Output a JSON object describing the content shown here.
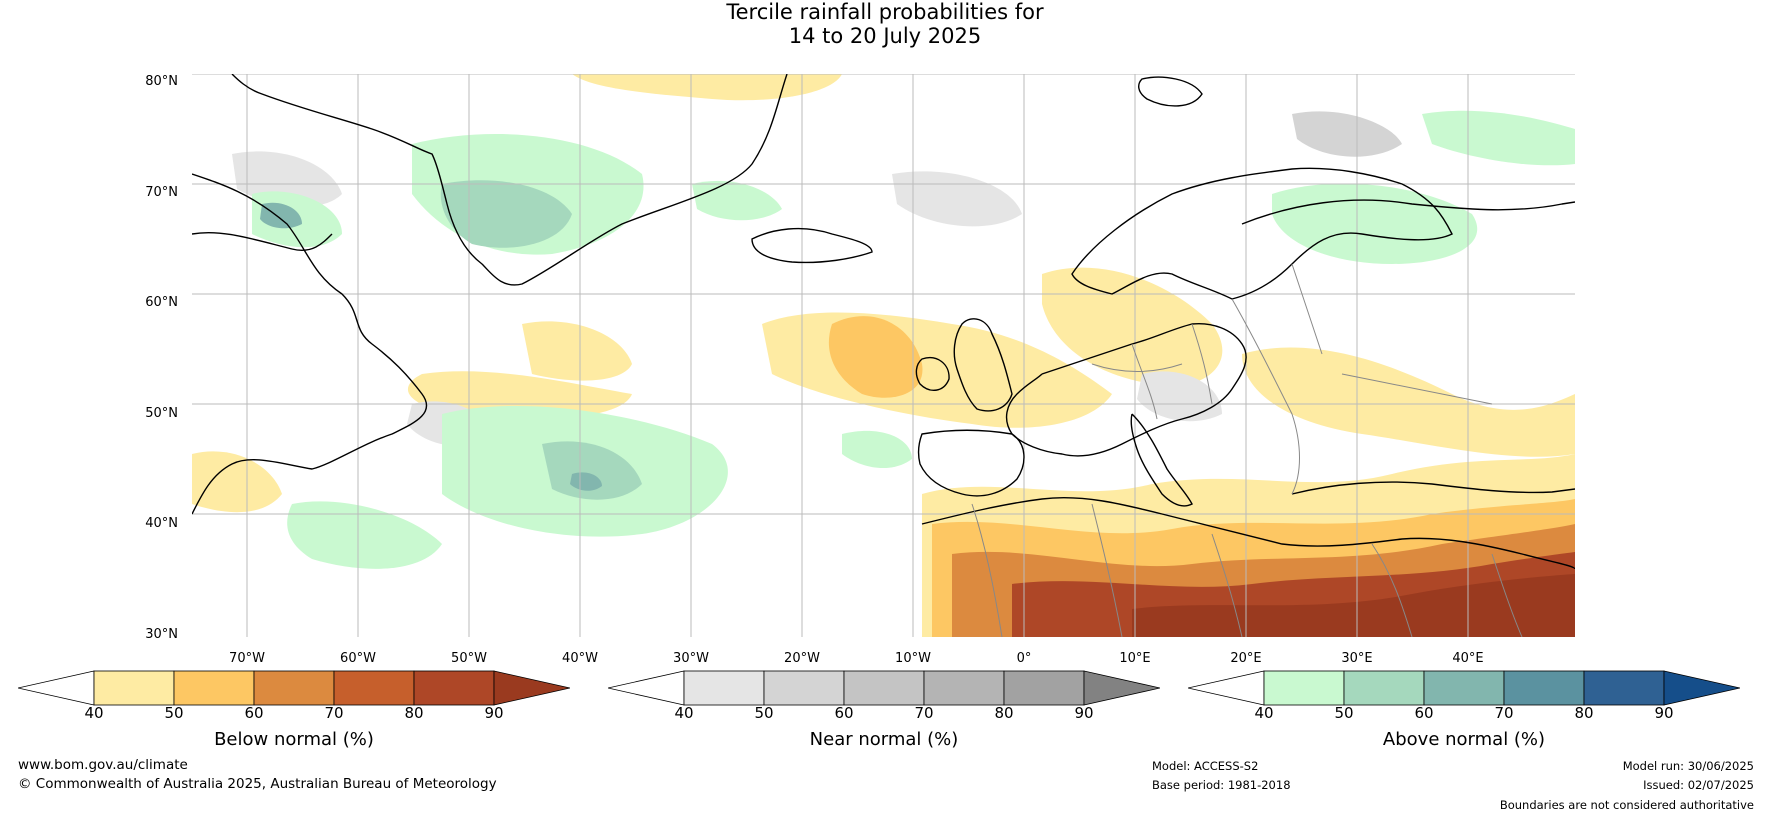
{
  "title": {
    "line1": "Tercile rainfall probabilities for",
    "line2": "14 to 20 July 2025"
  },
  "map": {
    "lat_labels": [
      "80°N",
      "70°N",
      "60°N",
      "50°N",
      "40°N",
      "30°N"
    ],
    "lon_labels": [
      "70°W",
      "60°W",
      "50°W",
      "40°W",
      "30°W",
      "20°W",
      "10°W",
      "0°",
      "10°E",
      "20°E",
      "30°E",
      "40°E"
    ],
    "colors": {
      "ocean_background": "#ffffff",
      "gridline": "#bbbbbb",
      "coastline": "#000000",
      "border": "#888888"
    }
  },
  "colorbars": [
    {
      "name": "below-normal",
      "label": "Below normal (%)",
      "ticks": [
        "40",
        "50",
        "60",
        "70",
        "80",
        "90"
      ],
      "colors": [
        "#ffffff",
        "#feeba3",
        "#fdc763",
        "#dc8a3f",
        "#c65f2c",
        "#ae4727",
        "#9a3a1f"
      ]
    },
    {
      "name": "near-normal",
      "label": "Near normal (%)",
      "ticks": [
        "40",
        "50",
        "60",
        "70",
        "80",
        "90"
      ],
      "colors": [
        "#ffffff",
        "#e5e5e5",
        "#d4d4d4",
        "#c4c4c4",
        "#b4b4b4",
        "#a2a2a2",
        "#828282"
      ]
    },
    {
      "name": "above-normal",
      "label": "Above normal (%)",
      "ticks": [
        "40",
        "50",
        "60",
        "70",
        "80",
        "90"
      ],
      "colors": [
        "#ffffff",
        "#c9f9d0",
        "#a5d8bd",
        "#82b6ae",
        "#5b92a0",
        "#2f6193",
        "#154e8a"
      ]
    }
  ],
  "footer": {
    "website": "www.bom.gov.au/climate",
    "copyright": "© Commonwealth of Australia 2025, Australian Bureau of Meteorology",
    "model": "Model: ACCESS-S2",
    "base_period": "Base period: 1981-2018",
    "model_run": "Model run: 30/06/2025",
    "issued": "Issued: 02/07/2025",
    "disclaimer": "Boundaries are not considered authoritative"
  }
}
